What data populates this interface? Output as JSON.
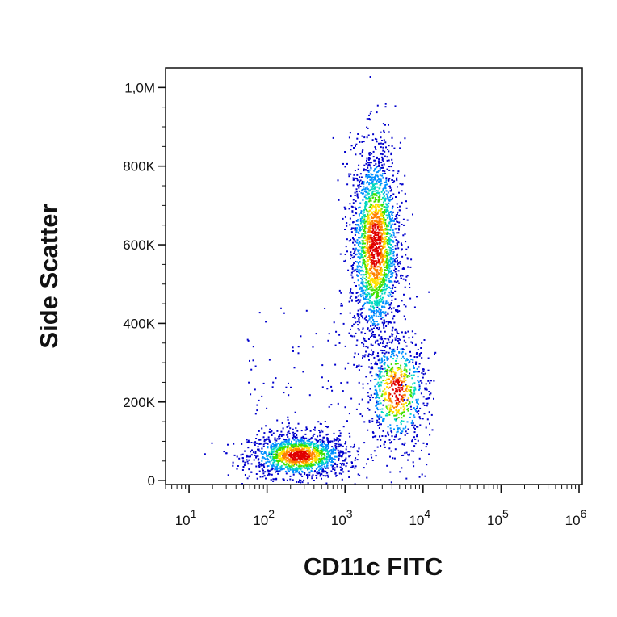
{
  "chart_data": {
    "type": "scatter",
    "style": "flow-cytometry pseudocolor density dot plot",
    "xlabel": "CD11c FITC",
    "ylabel": "Side Scatter",
    "x_scale": "log",
    "xlim": [
      5,
      1100000
    ],
    "ylim": [
      -10000,
      1050000
    ],
    "x_ticks": [
      {
        "value": 10,
        "base": "10",
        "exp": "1"
      },
      {
        "value": 100,
        "base": "10",
        "exp": "2"
      },
      {
        "value": 1000,
        "base": "10",
        "exp": "3"
      },
      {
        "value": 10000,
        "base": "10",
        "exp": "4"
      },
      {
        "value": 100000,
        "base": "10",
        "exp": "5"
      },
      {
        "value": 1000000,
        "base": "10",
        "exp": "6"
      }
    ],
    "y_ticks": [
      {
        "value": 0,
        "label": "0"
      },
      {
        "value": 200000,
        "label": "200K"
      },
      {
        "value": 400000,
        "label": "400K"
      },
      {
        "value": 600000,
        "label": "600K"
      },
      {
        "value": 800000,
        "label": "800K"
      },
      {
        "value": 1000000,
        "label": "1,0M"
      }
    ],
    "populations": [
      {
        "x_center": 250,
        "y_center": 65000,
        "x_spread_decades": 0.32,
        "y_spread": 28000,
        "events": 1400
      },
      {
        "x_center": 2400,
        "y_center": 600000,
        "x_spread_decades": 0.16,
        "y_spread": 130000,
        "events": 2200
      },
      {
        "x_center": 4500,
        "y_center": 230000,
        "x_spread_decades": 0.2,
        "y_spread": 70000,
        "events": 700
      }
    ],
    "density_colormap": [
      "#0000cc",
      "#0090ff",
      "#00d8c0",
      "#40e000",
      "#ffe000",
      "#ff8000",
      "#e00000"
    ],
    "grid": false,
    "legend": "none"
  }
}
